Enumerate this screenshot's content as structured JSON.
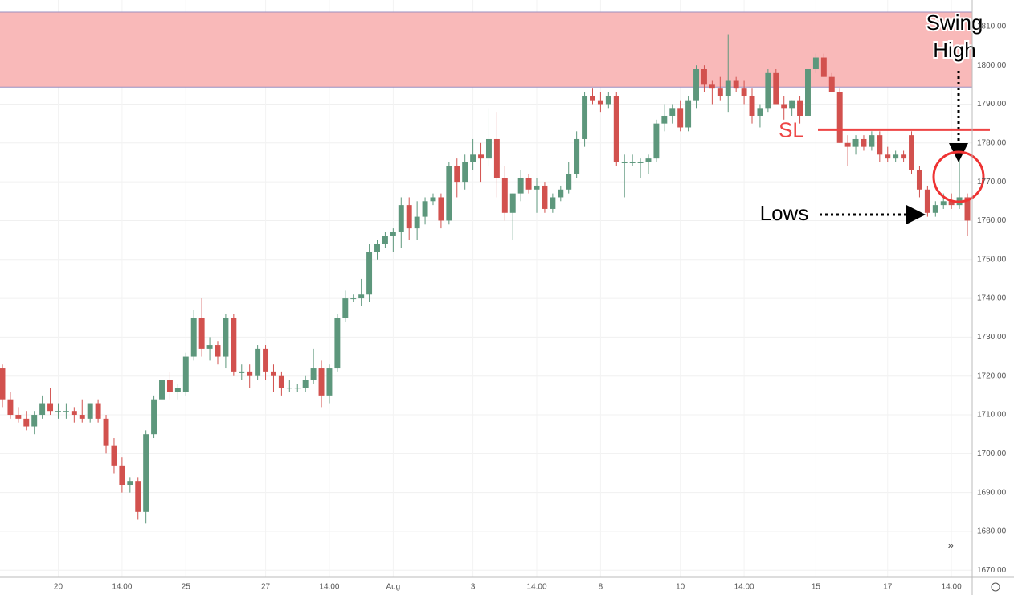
{
  "chart_data": {
    "type": "candlestick",
    "open": [
      1722,
      1714,
      1710,
      1709,
      1707,
      1710,
      1713,
      1711,
      1711,
      1711,
      1710,
      1709,
      1713,
      1709,
      1702,
      1697,
      1692,
      1693,
      1685,
      1705,
      1714,
      1719,
      1716,
      1716,
      1725,
      1735,
      1727,
      1728,
      1725,
      1735,
      1721,
      1721,
      1720,
      1727,
      1721,
      1720,
      1717,
      1717,
      1717,
      1719,
      1722,
      1715,
      1722,
      1735,
      1740,
      1740,
      1741,
      1752,
      1754,
      1756,
      1757,
      1764,
      1758,
      1761,
      1765,
      1766,
      1760,
      1774,
      1770,
      1775,
      1777,
      1776,
      1781,
      1771,
      1762,
      1767,
      1771,
      1768,
      1769,
      1763,
      1766,
      1768,
      1772,
      1781,
      1792,
      1791,
      1790,
      1792,
      1775,
      1775,
      1775,
      1775,
      1776,
      1785,
      1787,
      1789,
      1784,
      1791,
      1799,
      1795,
      1794,
      1792,
      1796,
      1794,
      1792,
      1787,
      1789,
      1798,
      1790,
      1789,
      1791,
      1787,
      1799,
      1802,
      1797,
      1793,
      1780,
      1779,
      1781,
      1779,
      1782,
      1777,
      1776,
      1777,
      1782,
      1773,
      1768,
      1762,
      1764,
      1765,
      1764,
      1766
    ],
    "high": [
      1723,
      1716,
      1712,
      1711,
      1711,
      1715,
      1717,
      1713,
      1713,
      1712,
      1714,
      1713,
      1714,
      1710,
      1704,
      1699,
      1694,
      1694,
      1706,
      1715,
      1720,
      1721,
      1718,
      1726,
      1737,
      1740,
      1730,
      1729,
      1736,
      1736,
      1723,
      1723,
      1728,
      1728,
      1723,
      1721,
      1719,
      1718,
      1720,
      1727,
      1724,
      1723,
      1736,
      1742,
      1741,
      1745,
      1754,
      1755,
      1757,
      1758,
      1766,
      1766,
      1765,
      1766,
      1767,
      1767,
      1775,
      1776,
      1777,
      1781,
      1780,
      1789,
      1788,
      1774,
      1767,
      1773,
      1772,
      1771,
      1770,
      1767,
      1769,
      1775,
      1783,
      1793,
      1794,
      1793,
      1793,
      1793,
      1777,
      1777,
      1776,
      1777,
      1786,
      1790,
      1790,
      1791,
      1792,
      1800,
      1800,
      1796,
      1797,
      1808,
      1797,
      1796,
      1794,
      1790,
      1799,
      1799,
      1792,
      1791,
      1792,
      1800,
      1803,
      1803,
      1798,
      1794,
      1782,
      1782,
      1782,
      1783,
      1783,
      1779,
      1778,
      1778,
      1783,
      1774,
      1769,
      1765,
      1767,
      1767,
      1777,
      1767
    ],
    "low": [
      1712,
      1709,
      1708,
      1706,
      1705,
      1709,
      1710,
      1709,
      1709,
      1708,
      1708,
      1708,
      1708,
      1700,
      1695,
      1690,
      1690,
      1683,
      1682,
      1704,
      1712,
      1714,
      1714,
      1715,
      1724,
      1725,
      1724,
      1723,
      1722,
      1720,
      1719,
      1717,
      1719,
      1719,
      1716,
      1715,
      1716,
      1716,
      1716,
      1718,
      1712,
      1713,
      1721,
      1734,
      1739,
      1738,
      1739,
      1750,
      1753,
      1752,
      1753,
      1755,
      1755,
      1759,
      1764,
      1758,
      1759,
      1766,
      1768,
      1773,
      1770,
      1774,
      1766,
      1760,
      1755,
      1765,
      1767,
      1762,
      1762,
      1762,
      1765,
      1767,
      1771,
      1779,
      1790,
      1788,
      1789,
      1774,
      1766,
      1774,
      1771,
      1772,
      1775,
      1783,
      1785,
      1783,
      1783,
      1789,
      1793,
      1790,
      1791,
      1788,
      1793,
      1790,
      1785,
      1784,
      1788,
      1790,
      1786,
      1787,
      1785,
      1786,
      1798,
      1797,
      1793,
      1780,
      1774,
      1777,
      1778,
      1778,
      1775,
      1775,
      1775,
      1775,
      1772,
      1766,
      1761,
      1761,
      1763,
      1763,
      1763,
      1756
    ],
    "close": [
      1714,
      1710,
      1709,
      1707,
      1710,
      1713,
      1711,
      1711,
      1711,
      1710,
      1709,
      1713,
      1709,
      1702,
      1697,
      1692,
      1693,
      1685,
      1705,
      1714,
      1719,
      1716,
      1717,
      1725,
      1735,
      1727,
      1728,
      1725,
      1735,
      1721,
      1721,
      1720,
      1727,
      1721,
      1720,
      1717,
      1717,
      1717,
      1719,
      1722,
      1715,
      1722,
      1735,
      1740,
      1740,
      1741,
      1752,
      1754,
      1756,
      1757,
      1764,
      1758,
      1761,
      1765,
      1766,
      1760,
      1774,
      1770,
      1775,
      1777,
      1776,
      1781,
      1771,
      1762,
      1767,
      1771,
      1768,
      1769,
      1763,
      1766,
      1768,
      1772,
      1781,
      1792,
      1791,
      1790,
      1792,
      1775,
      1775,
      1775,
      1775,
      1776,
      1785,
      1787,
      1789,
      1784,
      1791,
      1799,
      1795,
      1794,
      1792,
      1796,
      1794,
      1792,
      1787,
      1789,
      1798,
      1790,
      1789,
      1791,
      1787,
      1799,
      1802,
      1797,
      1793,
      1780,
      1779,
      1781,
      1779,
      1782,
      1777,
      1776,
      1777,
      1776,
      1773,
      1768,
      1762,
      1764,
      1765,
      1764,
      1766,
      1760
    ],
    "up_color": "#5d977c",
    "down_color": "#d2514e",
    "ylim": [
      1668.2,
      1816.8
    ],
    "yticks": [
      {
        "value": 1670,
        "label": "1670.00"
      },
      {
        "value": 1680,
        "label": "1680.00"
      },
      {
        "value": 1690,
        "label": "1690.00"
      },
      {
        "value": 1700,
        "label": "1700.00"
      },
      {
        "value": 1710,
        "label": "1710.00"
      },
      {
        "value": 1720,
        "label": "1720.00"
      },
      {
        "value": 1730,
        "label": "1730.00"
      },
      {
        "value": 1740,
        "label": "1740.00"
      },
      {
        "value": 1750,
        "label": "1750.00"
      },
      {
        "value": 1760,
        "label": "1760.00"
      },
      {
        "value": 1770,
        "label": "1770.00"
      },
      {
        "value": 1780,
        "label": "1780.00"
      },
      {
        "value": 1790,
        "label": "1790.00"
      },
      {
        "value": 1800,
        "label": "1800.00"
      },
      {
        "value": 1810,
        "label": "1810.00"
      }
    ],
    "xticks": [
      {
        "value": 7,
        "label": "20"
      },
      {
        "value": 15,
        "label": "14:00"
      },
      {
        "value": 23,
        "label": "25"
      },
      {
        "value": 33,
        "label": "27"
      },
      {
        "value": 41,
        "label": "14:00"
      },
      {
        "value": 49,
        "label": "Aug"
      },
      {
        "value": 59,
        "label": "3"
      },
      {
        "value": 67,
        "label": "14:00"
      },
      {
        "value": 75,
        "label": "8"
      },
      {
        "value": 85,
        "label": "10"
      },
      {
        "value": 93,
        "label": "14:00"
      },
      {
        "value": 102,
        "label": "15"
      },
      {
        "value": 111,
        "label": "17"
      },
      {
        "value": 119,
        "label": "14:00"
      }
    ],
    "grid": true,
    "zone": [
      1794.4,
      1813.7
    ],
    "zone_color": "#f9b9b9",
    "sl_level": 1783.4,
    "sl_label": "SL",
    "swing_label": "Swing High",
    "lows_label": "Lows"
  }
}
